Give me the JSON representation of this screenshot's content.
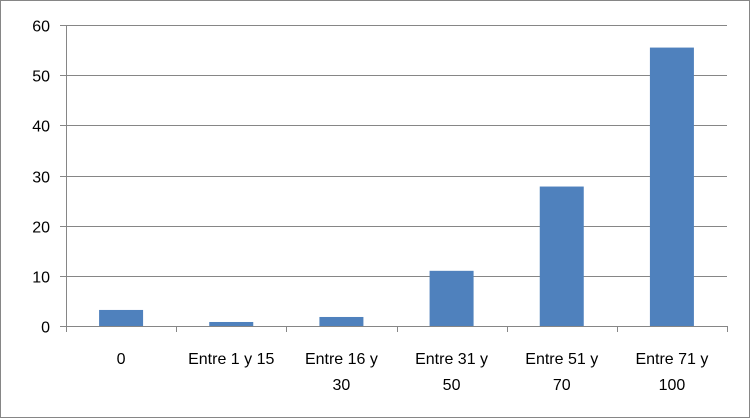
{
  "chart_data": {
    "type": "bar",
    "categories": [
      [
        "0"
      ],
      [
        "Entre 1 y 15"
      ],
      [
        "Entre 16 y",
        "30"
      ],
      [
        "Entre 31 y",
        "50"
      ],
      [
        "Entre 51 y",
        "70"
      ],
      [
        "Entre 71 y",
        "100"
      ]
    ],
    "values": [
      3.2,
      0.8,
      1.8,
      11,
      27.8,
      55.5
    ],
    "ylim": [
      0,
      60
    ],
    "yticks": [
      0,
      10,
      20,
      30,
      40,
      50,
      60
    ],
    "grid": true,
    "legend": "none",
    "bar_color": "#4F81BD",
    "grid_color": "#868686",
    "axis_color": "#868686"
  }
}
